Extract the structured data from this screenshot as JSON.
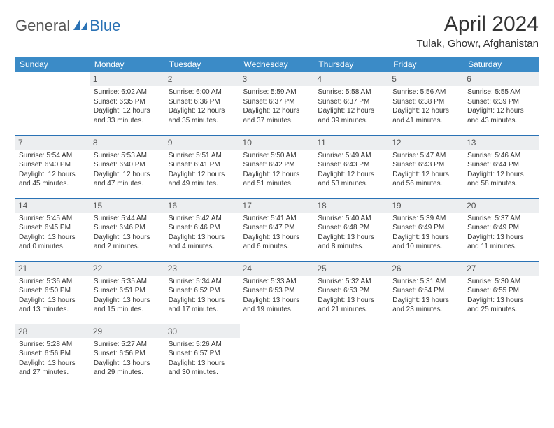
{
  "brand": {
    "part1": "General",
    "part2": "Blue"
  },
  "title": "April 2024",
  "location": "Tulak, Ghowr, Afghanistan",
  "colors": {
    "header_bg": "#3b8bc7",
    "header_text": "#ffffff",
    "row_border": "#2a72b5",
    "daynum_bg": "#eceef0",
    "text": "#333333",
    "brand_gray": "#555555",
    "brand_blue": "#2a72b5"
  },
  "weekdays": [
    "Sunday",
    "Monday",
    "Tuesday",
    "Wednesday",
    "Thursday",
    "Friday",
    "Saturday"
  ],
  "weeks": [
    [
      {
        "day": "",
        "sunrise": "",
        "sunset": "",
        "daylight1": "",
        "daylight2": ""
      },
      {
        "day": "1",
        "sunrise": "Sunrise: 6:02 AM",
        "sunset": "Sunset: 6:35 PM",
        "daylight1": "Daylight: 12 hours",
        "daylight2": "and 33 minutes."
      },
      {
        "day": "2",
        "sunrise": "Sunrise: 6:00 AM",
        "sunset": "Sunset: 6:36 PM",
        "daylight1": "Daylight: 12 hours",
        "daylight2": "and 35 minutes."
      },
      {
        "day": "3",
        "sunrise": "Sunrise: 5:59 AM",
        "sunset": "Sunset: 6:37 PM",
        "daylight1": "Daylight: 12 hours",
        "daylight2": "and 37 minutes."
      },
      {
        "day": "4",
        "sunrise": "Sunrise: 5:58 AM",
        "sunset": "Sunset: 6:37 PM",
        "daylight1": "Daylight: 12 hours",
        "daylight2": "and 39 minutes."
      },
      {
        "day": "5",
        "sunrise": "Sunrise: 5:56 AM",
        "sunset": "Sunset: 6:38 PM",
        "daylight1": "Daylight: 12 hours",
        "daylight2": "and 41 minutes."
      },
      {
        "day": "6",
        "sunrise": "Sunrise: 5:55 AM",
        "sunset": "Sunset: 6:39 PM",
        "daylight1": "Daylight: 12 hours",
        "daylight2": "and 43 minutes."
      }
    ],
    [
      {
        "day": "7",
        "sunrise": "Sunrise: 5:54 AM",
        "sunset": "Sunset: 6:40 PM",
        "daylight1": "Daylight: 12 hours",
        "daylight2": "and 45 minutes."
      },
      {
        "day": "8",
        "sunrise": "Sunrise: 5:53 AM",
        "sunset": "Sunset: 6:40 PM",
        "daylight1": "Daylight: 12 hours",
        "daylight2": "and 47 minutes."
      },
      {
        "day": "9",
        "sunrise": "Sunrise: 5:51 AM",
        "sunset": "Sunset: 6:41 PM",
        "daylight1": "Daylight: 12 hours",
        "daylight2": "and 49 minutes."
      },
      {
        "day": "10",
        "sunrise": "Sunrise: 5:50 AM",
        "sunset": "Sunset: 6:42 PM",
        "daylight1": "Daylight: 12 hours",
        "daylight2": "and 51 minutes."
      },
      {
        "day": "11",
        "sunrise": "Sunrise: 5:49 AM",
        "sunset": "Sunset: 6:43 PM",
        "daylight1": "Daylight: 12 hours",
        "daylight2": "and 53 minutes."
      },
      {
        "day": "12",
        "sunrise": "Sunrise: 5:47 AM",
        "sunset": "Sunset: 6:43 PM",
        "daylight1": "Daylight: 12 hours",
        "daylight2": "and 56 minutes."
      },
      {
        "day": "13",
        "sunrise": "Sunrise: 5:46 AM",
        "sunset": "Sunset: 6:44 PM",
        "daylight1": "Daylight: 12 hours",
        "daylight2": "and 58 minutes."
      }
    ],
    [
      {
        "day": "14",
        "sunrise": "Sunrise: 5:45 AM",
        "sunset": "Sunset: 6:45 PM",
        "daylight1": "Daylight: 13 hours",
        "daylight2": "and 0 minutes."
      },
      {
        "day": "15",
        "sunrise": "Sunrise: 5:44 AM",
        "sunset": "Sunset: 6:46 PM",
        "daylight1": "Daylight: 13 hours",
        "daylight2": "and 2 minutes."
      },
      {
        "day": "16",
        "sunrise": "Sunrise: 5:42 AM",
        "sunset": "Sunset: 6:46 PM",
        "daylight1": "Daylight: 13 hours",
        "daylight2": "and 4 minutes."
      },
      {
        "day": "17",
        "sunrise": "Sunrise: 5:41 AM",
        "sunset": "Sunset: 6:47 PM",
        "daylight1": "Daylight: 13 hours",
        "daylight2": "and 6 minutes."
      },
      {
        "day": "18",
        "sunrise": "Sunrise: 5:40 AM",
        "sunset": "Sunset: 6:48 PM",
        "daylight1": "Daylight: 13 hours",
        "daylight2": "and 8 minutes."
      },
      {
        "day": "19",
        "sunrise": "Sunrise: 5:39 AM",
        "sunset": "Sunset: 6:49 PM",
        "daylight1": "Daylight: 13 hours",
        "daylight2": "and 10 minutes."
      },
      {
        "day": "20",
        "sunrise": "Sunrise: 5:37 AM",
        "sunset": "Sunset: 6:49 PM",
        "daylight1": "Daylight: 13 hours",
        "daylight2": "and 11 minutes."
      }
    ],
    [
      {
        "day": "21",
        "sunrise": "Sunrise: 5:36 AM",
        "sunset": "Sunset: 6:50 PM",
        "daylight1": "Daylight: 13 hours",
        "daylight2": "and 13 minutes."
      },
      {
        "day": "22",
        "sunrise": "Sunrise: 5:35 AM",
        "sunset": "Sunset: 6:51 PM",
        "daylight1": "Daylight: 13 hours",
        "daylight2": "and 15 minutes."
      },
      {
        "day": "23",
        "sunrise": "Sunrise: 5:34 AM",
        "sunset": "Sunset: 6:52 PM",
        "daylight1": "Daylight: 13 hours",
        "daylight2": "and 17 minutes."
      },
      {
        "day": "24",
        "sunrise": "Sunrise: 5:33 AM",
        "sunset": "Sunset: 6:53 PM",
        "daylight1": "Daylight: 13 hours",
        "daylight2": "and 19 minutes."
      },
      {
        "day": "25",
        "sunrise": "Sunrise: 5:32 AM",
        "sunset": "Sunset: 6:53 PM",
        "daylight1": "Daylight: 13 hours",
        "daylight2": "and 21 minutes."
      },
      {
        "day": "26",
        "sunrise": "Sunrise: 5:31 AM",
        "sunset": "Sunset: 6:54 PM",
        "daylight1": "Daylight: 13 hours",
        "daylight2": "and 23 minutes."
      },
      {
        "day": "27",
        "sunrise": "Sunrise: 5:30 AM",
        "sunset": "Sunset: 6:55 PM",
        "daylight1": "Daylight: 13 hours",
        "daylight2": "and 25 minutes."
      }
    ],
    [
      {
        "day": "28",
        "sunrise": "Sunrise: 5:28 AM",
        "sunset": "Sunset: 6:56 PM",
        "daylight1": "Daylight: 13 hours",
        "daylight2": "and 27 minutes."
      },
      {
        "day": "29",
        "sunrise": "Sunrise: 5:27 AM",
        "sunset": "Sunset: 6:56 PM",
        "daylight1": "Daylight: 13 hours",
        "daylight2": "and 29 minutes."
      },
      {
        "day": "30",
        "sunrise": "Sunrise: 5:26 AM",
        "sunset": "Sunset: 6:57 PM",
        "daylight1": "Daylight: 13 hours",
        "daylight2": "and 30 minutes."
      },
      {
        "day": "",
        "sunrise": "",
        "sunset": "",
        "daylight1": "",
        "daylight2": ""
      },
      {
        "day": "",
        "sunrise": "",
        "sunset": "",
        "daylight1": "",
        "daylight2": ""
      },
      {
        "day": "",
        "sunrise": "",
        "sunset": "",
        "daylight1": "",
        "daylight2": ""
      },
      {
        "day": "",
        "sunrise": "",
        "sunset": "",
        "daylight1": "",
        "daylight2": ""
      }
    ]
  ]
}
